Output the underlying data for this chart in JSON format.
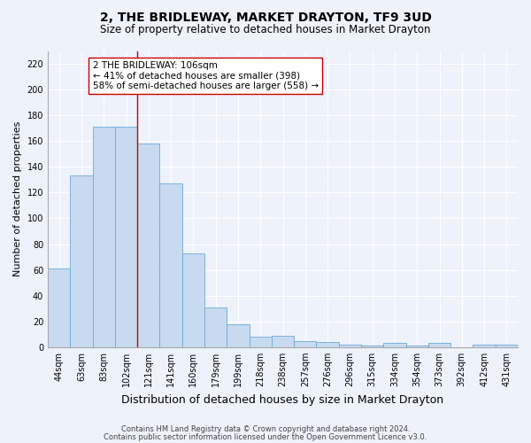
{
  "title": "2, THE BRIDLEWAY, MARKET DRAYTON, TF9 3UD",
  "subtitle": "Size of property relative to detached houses in Market Drayton",
  "xlabel": "Distribution of detached houses by size in Market Drayton",
  "ylabel": "Number of detached properties",
  "categories": [
    "44sqm",
    "63sqm",
    "83sqm",
    "102sqm",
    "121sqm",
    "141sqm",
    "160sqm",
    "179sqm",
    "199sqm",
    "218sqm",
    "238sqm",
    "257sqm",
    "276sqm",
    "296sqm",
    "315sqm",
    "334sqm",
    "354sqm",
    "373sqm",
    "392sqm",
    "412sqm",
    "431sqm"
  ],
  "values": [
    61,
    133,
    171,
    171,
    158,
    127,
    73,
    31,
    18,
    8,
    9,
    5,
    4,
    2,
    1,
    3,
    1,
    3,
    0,
    2,
    2
  ],
  "bar_color": "#c8daf0",
  "bar_edge_color": "#6baad8",
  "background_color": "#eef2fb",
  "grid_color": "#ffffff",
  "vline_x_index": 3,
  "vline_color": "#cc0000",
  "annotation_text": "2 THE BRIDLEWAY: 106sqm\n← 41% of detached houses are smaller (398)\n58% of semi-detached houses are larger (558) →",
  "annotation_box_facecolor": "#ffffff",
  "annotation_box_edgecolor": "#cc0000",
  "ylim": [
    0,
    230
  ],
  "yticks": [
    0,
    20,
    40,
    60,
    80,
    100,
    120,
    140,
    160,
    180,
    200,
    220
  ],
  "title_fontsize": 10,
  "subtitle_fontsize": 8.5,
  "xlabel_fontsize": 9,
  "ylabel_fontsize": 8,
  "tick_fontsize": 7,
  "annotation_fontsize": 7.5,
  "footnote_fontsize": 6,
  "footnote1": "Contains HM Land Registry data © Crown copyright and database right 2024.",
  "footnote2": "Contains public sector information licensed under the Open Government Licence v3.0."
}
